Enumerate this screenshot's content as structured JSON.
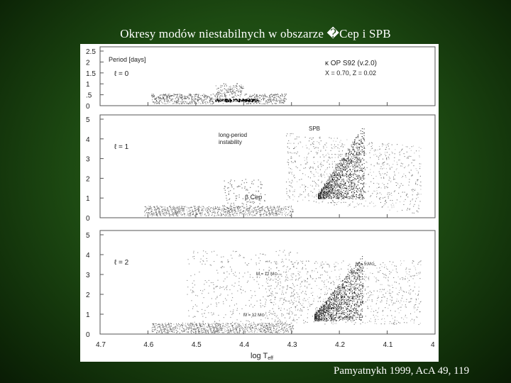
{
  "slide": {
    "title": "Okresy modów niestabilnych w obszarze �Cep i SPB",
    "citation": "Pamyatnykh 1999, AcA 49, 119"
  },
  "figure": {
    "xlabel": "log T",
    "xlabel_sub": "eff",
    "panels": [
      {
        "ylabel": "Period [days]",
        "l_label": "ℓ = 0",
        "legend_line1": "κ OP S92 (v.2.0)",
        "legend_line2": "X = 0.70, Z = 0.02",
        "annotations": []
      },
      {
        "ylabel": "",
        "l_label": "ℓ = 1",
        "annotations": [
          "long-period",
          "instability",
          "SPB",
          "β Cep"
        ]
      },
      {
        "ylabel": "",
        "l_label": "ℓ = 2",
        "annotations": [
          "M = 12 M⊙",
          "M = 12 M⊙",
          "M = 5 M⊙"
        ]
      }
    ]
  },
  "chart_data": {
    "type": "scatter",
    "title": "",
    "xlabel": "log T_eff",
    "xlim": [
      4.7,
      4.0
    ],
    "x_ticks": [
      "4.7",
      "4.6",
      "4.5",
      "4.4",
      "4.3",
      "4.2",
      "4.1",
      "4"
    ],
    "panels": [
      {
        "label": "ℓ = 0",
        "ylim": [
          0,
          2.5
        ],
        "y_ticks": [
          "0",
          ".5",
          "1",
          "1.5",
          "2",
          "2.5"
        ]
      },
      {
        "label": "ℓ = 1",
        "ylim": [
          0,
          5
        ],
        "y_ticks": [
          "0",
          "1",
          "2",
          "3",
          "4",
          "5"
        ]
      },
      {
        "label": "ℓ = 2",
        "ylim": [
          0,
          5
        ],
        "y_ticks": [
          "0",
          "1",
          "2",
          "3",
          "4",
          "5"
        ]
      }
    ],
    "series": [
      {
        "name": "β Cep",
        "points": [
          [
            4.55,
            0.3
          ],
          [
            4.5,
            0.3
          ],
          [
            4.45,
            0.25
          ],
          [
            4.4,
            0.2
          ],
          [
            4.35,
            0.25
          ],
          [
            4.45,
            0.2
          ],
          [
            4.5,
            0.2
          ],
          [
            4.48,
            0.8
          ],
          [
            4.45,
            1.0
          ],
          [
            4.42,
            0.6
          ]
        ]
      },
      {
        "name": "SPB",
        "points": [
          [
            4.3,
            2.5
          ],
          [
            4.25,
            3.0
          ],
          [
            4.2,
            3.5
          ],
          [
            4.15,
            4.5
          ],
          [
            4.1,
            3.0
          ],
          [
            4.05,
            2.5
          ],
          [
            4.28,
            1.5
          ],
          [
            4.2,
            1.8
          ],
          [
            4.12,
            1.5
          ]
        ]
      }
    ]
  }
}
